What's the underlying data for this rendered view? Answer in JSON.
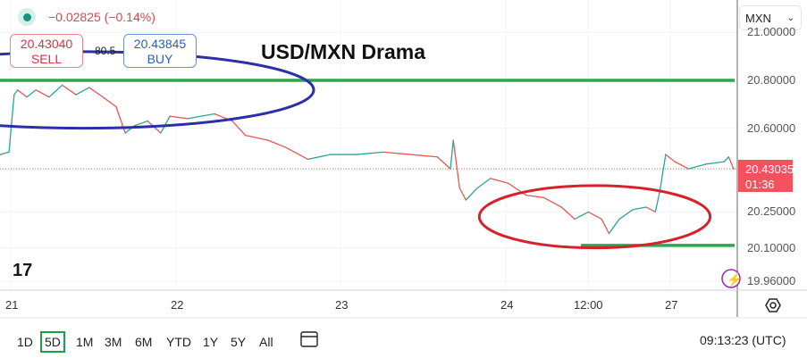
{
  "header": {
    "change": "−0.02825 (−0.14%)",
    "sell_price": "20.43040",
    "sell_label": "SELL",
    "spread": "80.5",
    "buy_price": "20.43845",
    "buy_label": "BUY",
    "currency": "MXN"
  },
  "footer": {
    "ranges": [
      "1D",
      "5D",
      "1M",
      "3M",
      "6M",
      "YTD",
      "1Y",
      "5Y",
      "All"
    ],
    "active_range": "5D",
    "clock": "09:13:23 (UTC)"
  },
  "colors": {
    "up": "#26a69a",
    "down": "#ef5350",
    "support_line": "#2ba84a",
    "blue_ellipse": "#2b2fa8",
    "red_ellipse": "#d8202a",
    "price_label": "#f2515d"
  },
  "chart_data": {
    "type": "line",
    "title": "USD/MXN Drama",
    "y_ticks": [
      "21.00000",
      "20.80000",
      "20.60000",
      "20.25000",
      "20.10000",
      "19.96000"
    ],
    "x_ticks": [
      "21",
      "22",
      "23",
      "24",
      "12:00",
      "27"
    ],
    "ylim": [
      19.93,
      21.02
    ],
    "grid": true,
    "current_price": "20.43035",
    "countdown": "01:36",
    "horizontal_lines": [
      {
        "price": 20.8,
        "from": "20 22:00",
        "to": "27 09:13"
      },
      {
        "price": 20.11,
        "from": "24 11:00",
        "to": "27 09:13"
      }
    ],
    "ellipses": [
      {
        "color": "blue",
        "center": [
          "21 10:30",
          20.76
        ],
        "span_hours": 28,
        "span_price": 0.32
      },
      {
        "color": "red",
        "center": [
          "24 13:00",
          20.23
        ],
        "span_hours": 14,
        "span_price": 0.26
      }
    ],
    "points": [
      [
        "20 22:30",
        20.49
      ],
      [
        "20 23:45",
        20.5
      ],
      [
        "21 00:30",
        20.74
      ],
      [
        "21 01:00",
        20.76
      ],
      [
        "21 02:20",
        20.73
      ],
      [
        "21 03:40",
        20.76
      ],
      [
        "21 05:35",
        20.73
      ],
      [
        "21 07:30",
        20.78
      ],
      [
        "21 09:30",
        20.74
      ],
      [
        "21 11:25",
        20.77
      ],
      [
        "21 13:25",
        20.73
      ],
      [
        "21 15:20",
        20.69
      ],
      [
        "21 16:40",
        20.58
      ],
      [
        "21 18:00",
        20.61
      ],
      [
        "21 19:55",
        20.63
      ],
      [
        "21 21:50",
        20.58
      ],
      [
        "21 23:10",
        20.65
      ],
      [
        "22 01:45",
        20.64
      ],
      [
        "22 05:40",
        20.66
      ],
      [
        "22 08:15",
        20.63
      ],
      [
        "22 10:10",
        20.57
      ],
      [
        "22 13:25",
        20.55
      ],
      [
        "22 16:00",
        20.52
      ],
      [
        "22 19:15",
        20.47
      ],
      [
        "22 22:30",
        20.49
      ],
      [
        "23 02:20",
        20.49
      ],
      [
        "23 06:15",
        20.5
      ],
      [
        "23 10:10",
        20.49
      ],
      [
        "23 14:05",
        20.48
      ],
      [
        "23 16:00",
        20.43
      ],
      [
        "23 16:25",
        20.55
      ],
      [
        "23 17:20",
        20.35
      ],
      [
        "23 18:15",
        20.3
      ],
      [
        "23 19:55",
        20.35
      ],
      [
        "23 21:50",
        20.39
      ],
      [
        "24 00:25",
        20.37
      ],
      [
        "24 03:00",
        20.32
      ],
      [
        "24 05:35",
        20.31
      ],
      [
        "24 08:10",
        20.27
      ],
      [
        "24 10:05",
        20.22
      ],
      [
        "24 12:05",
        20.25
      ],
      [
        "24 14:00",
        20.22
      ],
      [
        "24 15:05",
        20.16
      ],
      [
        "24 16:35",
        20.22
      ],
      [
        "24 18:35",
        20.26
      ],
      [
        "24 20:30",
        20.27
      ],
      [
        "24 21:50",
        20.25
      ],
      [
        "24 22:30",
        20.34
      ],
      [
        "24 23:20",
        20.49
      ],
      [
        "27 00:40",
        20.46
      ],
      [
        "27 02:40",
        20.43
      ],
      [
        "27 05:15",
        20.45
      ],
      [
        "27 07:50",
        20.46
      ],
      [
        "27 08:30",
        20.48
      ],
      [
        "27 09:13",
        20.43
      ]
    ]
  }
}
